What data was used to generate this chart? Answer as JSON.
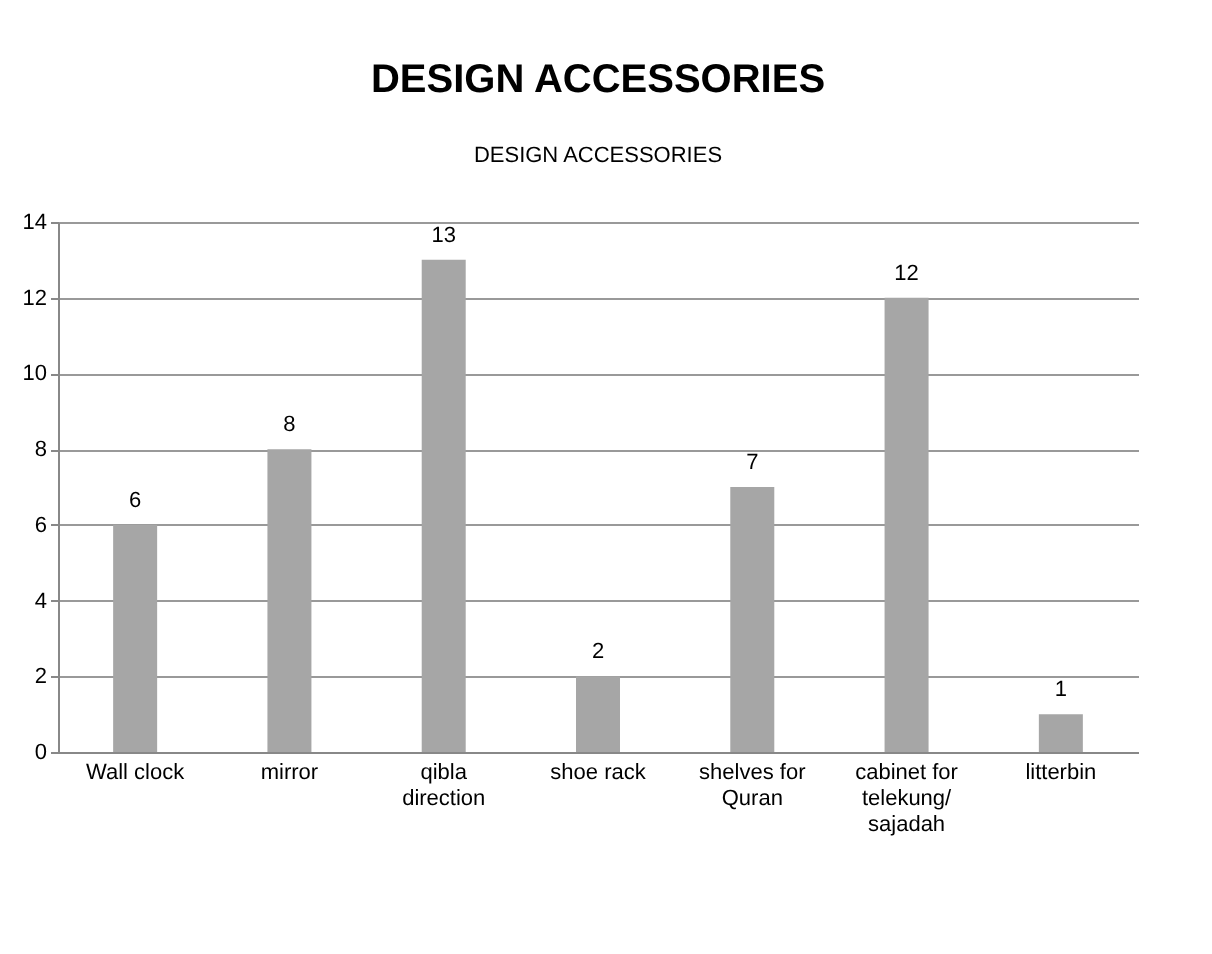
{
  "chart_data": {
    "type": "bar",
    "title": "DESIGN ACCESSORIES",
    "subtitle": "DESIGN ACCESSORIES",
    "categories": [
      "Wall clock",
      "mirror",
      "qibla direction",
      "shoe rack",
      "shelves for Quran",
      "cabinet for telekung/ sajadah",
      "litterbin"
    ],
    "values": [
      6,
      8,
      13,
      2,
      7,
      12,
      1
    ],
    "color": "#a6a6a6",
    "ylim": [
      0,
      14
    ],
    "yticks": [
      0,
      2,
      4,
      6,
      8,
      10,
      12,
      14
    ],
    "grid": "y",
    "data_labels": true
  }
}
